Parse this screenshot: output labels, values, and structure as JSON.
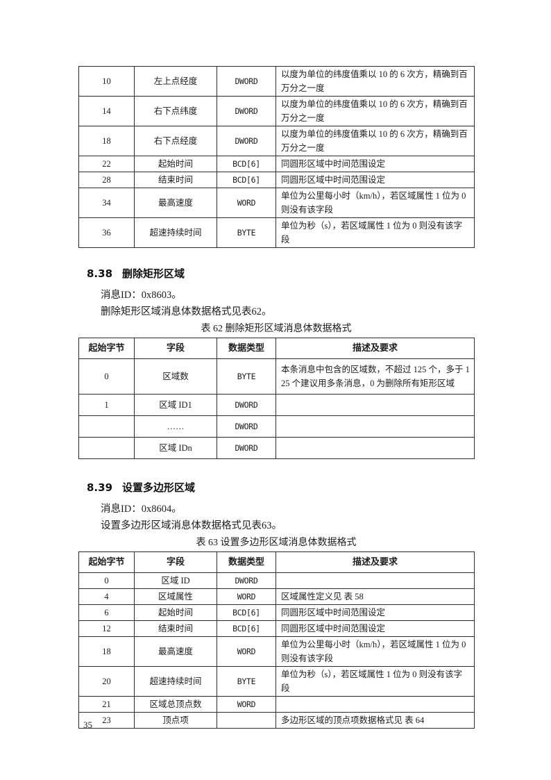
{
  "page_number": "35",
  "table_top": {
    "rows": [
      [
        "10",
        "左上点经度",
        "DWORD",
        "以度为单位的纬度值乘以 10 的 6 次方，精确到百万分之一度"
      ],
      [
        "14",
        "右下点纬度",
        "DWORD",
        "以度为单位的纬度值乘以 10 的 6 次方，精确到百万分之一度"
      ],
      [
        "18",
        "右下点经度",
        "DWORD",
        "以度为单位的纬度值乘以 10 的 6 次方，精确到百万分之一度"
      ],
      [
        "22",
        "起始时间",
        "BCD[6]",
        "同圆形区域中时间范围设定"
      ],
      [
        "28",
        "结束时间",
        "BCD[6]",
        "同圆形区域中时间范围设定"
      ],
      [
        "34",
        "最高速度",
        "WORD",
        "单位为公里每小时（km/h），若区域属性 1 位为 0 则没有该字段"
      ],
      [
        "36",
        "超速持续时间",
        "BYTE",
        "单位为秒（s），若区域属性 1 位为 0 则没有该字段"
      ]
    ]
  },
  "section_8_38": {
    "number": "8.38",
    "title": "删除矩形区域",
    "paragraphs": [
      "消息ID：0x8603。",
      "删除矩形区域消息体数据格式见表62。"
    ],
    "table_caption": "表 62 删除矩形区域消息体数据格式",
    "table": {
      "headers": [
        "起始字节",
        "字段",
        "数据类型",
        "描述及要求"
      ],
      "rows": [
        [
          "0",
          "区域数",
          "BYTE",
          "本条消息中包含的区域数，不超过 125 个，多于 125 个建议用多条消息，0 为删除所有矩形区域"
        ],
        [
          "1",
          "区域 ID1",
          "DWORD",
          ""
        ],
        [
          "",
          "……",
          "DWORD",
          ""
        ],
        [
          "",
          "区域 IDn",
          "DWORD",
          ""
        ]
      ]
    }
  },
  "section_8_39": {
    "number": "8.39",
    "title": "设置多边形区域",
    "paragraphs": [
      "消息ID：0x8604。",
      "设置多边形区域消息体数据格式见表63。"
    ],
    "table_caption": "表 63 设置多边形区域消息体数据格式",
    "table": {
      "headers": [
        "起始字节",
        "字段",
        "数据类型",
        "描述及要求"
      ],
      "rows": [
        [
          "0",
          "区域 ID",
          "DWORD",
          ""
        ],
        [
          "4",
          "区域属性",
          "WORD",
          "区域属性定义见 表 58"
        ],
        [
          "6",
          "起始时间",
          "BCD[6]",
          "同圆形区域中时间范围设定"
        ],
        [
          "12",
          "结束时间",
          "BCD[6]",
          "同圆形区域中时间范围设定"
        ],
        [
          "18",
          "最高速度",
          "WORD",
          "单位为公里每小时（km/h），若区域属性 1 位为 0 则没有该字段"
        ],
        [
          "20",
          "超速持续时间",
          "BYTE",
          "单位为秒（s），若区域属性 1 位为 0 则没有该字段"
        ],
        [
          "21",
          "区域总顶点数",
          "WORD",
          ""
        ],
        [
          "23",
          "顶点项",
          "",
          "多边形区域的顶点项数据格式见 表 64"
        ]
      ]
    }
  }
}
